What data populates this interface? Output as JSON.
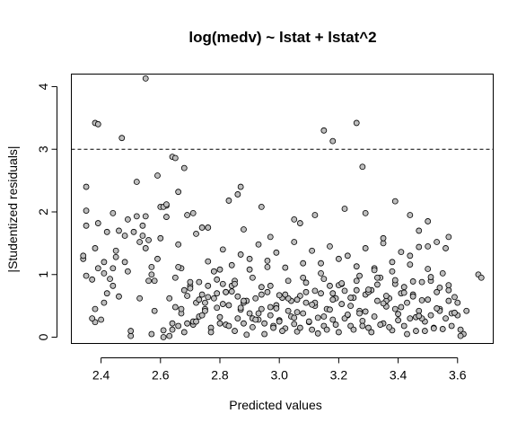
{
  "colors": {
    "point_fill": "#bebebe",
    "point_stroke": "#000000",
    "background": "#ffffff"
  },
  "chart_data": {
    "type": "scatter",
    "title": "log(medv) ~ lstat + lstat^2",
    "xlabel": "Predicted values",
    "ylabel": "|Studentized residuals|",
    "xlim": [
      2.3,
      3.72
    ],
    "ylim": [
      -0.1,
      4.2
    ],
    "xticks": [
      2.4,
      2.6,
      2.8,
      3.0,
      3.2,
      3.4,
      3.6
    ],
    "xtick_labels": [
      "2.4",
      "2.6",
      "2.8",
      "3.0",
      "3.2",
      "3.4",
      "3.6"
    ],
    "yticks": [
      0,
      1,
      2,
      3,
      4
    ],
    "ytick_labels": [
      "0",
      "1",
      "2",
      "3",
      "4"
    ],
    "reference_line": {
      "y": 3,
      "style": "dashed"
    },
    "grid": false,
    "x": [
      2.34,
      2.35,
      2.35,
      2.37,
      2.38,
      2.38,
      2.39,
      2.41,
      2.43,
      2.44,
      2.45,
      2.46,
      2.34,
      2.35,
      2.37,
      2.38,
      2.39,
      2.4,
      2.41,
      2.42,
      2.44,
      2.46,
      2.48,
      2.49,
      2.5,
      2.51,
      2.52,
      2.53,
      2.54,
      2.55,
      2.56,
      2.57,
      2.58,
      2.59,
      2.6,
      2.61,
      2.62,
      2.63,
      2.64,
      2.65,
      2.66,
      2.67,
      2.68,
      2.69,
      2.7,
      2.71,
      2.72,
      2.73,
      2.74,
      2.75,
      2.76,
      2.77,
      2.78,
      2.79,
      2.8,
      2.81,
      2.82,
      2.83,
      2.84,
      2.85,
      2.86,
      2.87,
      2.88,
      2.89,
      2.9,
      2.91,
      2.92,
      2.93,
      2.94,
      2.95,
      2.96,
      2.97,
      2.98,
      2.99,
      3.0,
      3.01,
      3.02,
      3.03,
      3.04,
      3.05,
      3.06,
      3.07,
      3.08,
      3.09,
      3.1,
      3.11,
      3.12,
      3.13,
      3.14,
      3.15,
      3.16,
      3.17,
      3.18,
      3.19,
      3.2,
      3.21,
      3.22,
      3.23,
      3.24,
      3.25,
      3.26,
      3.27,
      3.28,
      3.29,
      3.3,
      3.31,
      3.32,
      3.33,
      3.34,
      3.35,
      3.36,
      3.37,
      3.38,
      3.39,
      3.4,
      3.41,
      3.42,
      3.43,
      3.44,
      3.45,
      3.46,
      3.47,
      3.48,
      3.49,
      3.5,
      3.51,
      3.52,
      3.53,
      3.54,
      3.55,
      3.56,
      3.57,
      3.58,
      3.59,
      3.6,
      3.61,
      3.62,
      3.63,
      3.67,
      3.68,
      2.42,
      2.44,
      2.48,
      2.52,
      2.56,
      2.58,
      2.62,
      2.65,
      2.67,
      2.7,
      2.73,
      2.76,
      2.79,
      2.82,
      2.85,
      2.88,
      2.91,
      2.94,
      2.97,
      3.0,
      3.03,
      3.06,
      3.09,
      3.12,
      3.15,
      3.18,
      3.21,
      3.24,
      3.27,
      3.3,
      3.33,
      3.36,
      3.39,
      3.42,
      3.45,
      3.48,
      3.51,
      3.54,
      3.57,
      3.6,
      2.55,
      2.6,
      2.66,
      2.72,
      2.78,
      2.84,
      2.9,
      2.96,
      3.02,
      3.08,
      3.14,
      3.2,
      3.26,
      3.32,
      3.38,
      3.44,
      3.5,
      3.56,
      2.5,
      2.57,
      2.64,
      2.71,
      2.77,
      2.83,
      2.89,
      2.95,
      3.01,
      3.07,
      3.13,
      3.19,
      3.25,
      3.31,
      3.37,
      3.43,
      3.49,
      3.55,
      3.61,
      2.68,
      2.74,
      2.8,
      2.86,
      2.92,
      2.98,
      3.04,
      3.1,
      3.16,
      3.22,
      3.28,
      3.34,
      3.4,
      3.46,
      3.52,
      3.58,
      2.61,
      2.69,
      2.75,
      2.81,
      2.87,
      2.93,
      2.99,
      3.05,
      3.11,
      3.17,
      3.23,
      3.29,
      3.35,
      3.41,
      3.47,
      3.53,
      3.59,
      2.63,
      2.7,
      2.76,
      2.82,
      2.88,
      2.94,
      3.0,
      3.06,
      3.12,
      3.18,
      3.24,
      3.3,
      3.36,
      3.42,
      3.48,
      3.54,
      2.67,
      2.73,
      2.79,
      2.85,
      2.91,
      2.97,
      3.03,
      3.09,
      3.15,
      3.21,
      3.27,
      3.33,
      3.39,
      3.45,
      3.51,
      3.57,
      2.72,
      2.78,
      2.84,
      2.9,
      2.96,
      3.02,
      3.08,
      3.14,
      3.2,
      3.26,
      3.32,
      3.38,
      3.44,
      3.5,
      2.66,
      2.75,
      2.81,
      2.87,
      2.93,
      2.99,
      3.05,
      3.11,
      3.17,
      3.23,
      3.29,
      3.35,
      3.41,
      3.47,
      2.38,
      2.39,
      2.55,
      2.64,
      2.65,
      2.68,
      2.87,
      3.15,
      3.18,
      3.26,
      3.28,
      2.47,
      2.49,
      2.54,
      2.57,
      2.61,
      2.66,
      2.71,
      2.74,
      2.83,
      2.86,
      2.88,
      2.94,
      3.07,
      3.12,
      3.29,
      3.39,
      3.44,
      3.5,
      2.35,
      2.41,
      2.45,
      2.53,
      2.59,
      2.62,
      2.69,
      2.76,
      2.8,
      2.97,
      3.05,
      3.22,
      3.35,
      3.47,
      3.53,
      3.57
    ],
    "y": [
      1.25,
      1.78,
      0.98,
      0.92,
      1.42,
      0.24,
      1.82,
      1.2,
      0.93,
      1.1,
      1.38,
      1.7,
      1.3,
      2.4,
      0.3,
      0.45,
      1.1,
      0.28,
      0.55,
      0.7,
      0.82,
      0.65,
      1.2,
      1.05,
      0.02,
      1.68,
      1.93,
      0.62,
      1.78,
      1.42,
      0.9,
      1.12,
      0.42,
      1.25,
      1.58,
      0.0,
      1.92,
      0.62,
      0.22,
      0.48,
      0.18,
      1.1,
      0.75,
      0.66,
      0.82,
      0.2,
      0.55,
      0.33,
      0.68,
      0.45,
      1.21,
      0.15,
      0.62,
      0.7,
      0.32,
      0.85,
      0.2,
      0.51,
      0.73,
      0.1,
      0.65,
      0.44,
      0.22,
      0.58,
      0.38,
      0.16,
      0.62,
      0.28,
      0.45,
      0.05,
      0.72,
      0.35,
      0.18,
      0.51,
      0.27,
      0.63,
      0.14,
      0.42,
      0.58,
      0.21,
      0.09,
      0.66,
      0.38,
      0.55,
      0.24,
      0.12,
      0.5,
      0.31,
      0.7,
      0.18,
      0.45,
      0.82,
      0.28,
      0.62,
      0.08,
      0.53,
      0.74,
      0.35,
      0.18,
      0.63,
      0.9,
      0.42,
      0.26,
      0.68,
      0.15,
      0.75,
      0.33,
      0.58,
      0.95,
      0.22,
      0.49,
      0.62,
      0.11,
      0.85,
      0.37,
      0.7,
      0.18,
      0.55,
      0.3,
      0.68,
      0.1,
      0.42,
      0.88,
      0.25,
      0.6,
      0.35,
      0.15,
      0.72,
      0.45,
      1.02,
      0.3,
      0.58,
      0.18,
      0.64,
      0.35,
      0.12,
      0.05,
      0.42,
      1.0,
      0.95,
      1.68,
      1.98,
      1.62,
      2.48,
      1.55,
      0.9,
      2.1,
      0.95,
      0.38,
      0.88,
      0.6,
      0.82,
      0.47,
      0.72,
      0.9,
      0.55,
      0.3,
      0.68,
      0.48,
      0.25,
      0.62,
      0.4,
      0.72,
      0.55,
      0.33,
      0.6,
      0.85,
      0.5,
      0.38,
      0.72,
      0.95,
      0.58,
      0.45,
      0.8,
      0.65,
      0.3,
      0.9,
      0.42,
      0.75,
      0.55,
      1.93,
      2.08,
      2.32,
      1.65,
      1.05,
      0.82,
      1.25,
      1.12,
      0.68,
      0.95,
      1.18,
      0.83,
      0.75,
      1.1,
      1.05,
      1.3,
      1.45,
      1.42,
      0.1,
      0.05,
      0.12,
      0.25,
      0.08,
      0.18,
      0.04,
      0.22,
      0.1,
      0.15,
      0.06,
      0.2,
      0.12,
      0.08,
      0.16,
      0.05,
      0.1,
      0.13,
      0.02,
      0.08,
      0.35,
      0.22,
      0.3,
      0.28,
      0.15,
      0.33,
      0.25,
      0.12,
      0.3,
      0.18,
      0.2,
      0.27,
      0.32,
      0.14,
      0.38,
      0.11,
      0.22,
      0.42,
      0.53,
      0.47,
      0.38,
      0.46,
      0.31,
      0.52,
      0.44,
      0.36,
      0.41,
      0.54,
      0.48,
      0.34,
      0.46,
      0.39,
      0.02,
      0.78,
      0.64,
      0.72,
      0.58,
      0.8,
      0.67,
      0.6,
      0.74,
      0.7,
      0.63,
      0.76,
      0.66,
      0.71,
      0.59,
      0.79,
      0.45,
      0.88,
      0.92,
      0.85,
      0.95,
      0.82,
      0.9,
      0.87,
      0.93,
      0.86,
      0.98,
      0.84,
      0.91,
      0.89,
      0.96,
      0.83,
      0.25,
      1.05,
      1.15,
      1.08,
      1.22,
      1.11,
      1.18,
      1.02,
      1.25,
      1.13,
      1.07,
      1.2,
      1.16,
      1.09,
      1.12,
      0.55,
      1.4,
      1.32,
      1.48,
      1.35,
      1.52,
      1.38,
      1.45,
      1.3,
      1.42,
      1.5,
      1.36,
      1.44,
      3.42,
      3.4,
      4.13,
      2.88,
      2.86,
      2.7,
      2.4,
      3.3,
      3.13,
      3.42,
      2.72,
      3.18,
      1.88,
      1.62,
      1.0,
      2.08,
      1.48,
      1.98,
      1.75,
      2.18,
      2.28,
      1.72,
      2.08,
      1.82,
      1.95,
      1.98,
      2.17,
      1.95,
      1.85,
      2.02,
      1.02,
      1.28,
      1.52,
      2.58,
      2.12,
      1.95,
      1.75,
      1.08,
      1.6,
      1.88,
      2.05,
      1.58,
      1.7,
      1.52,
      1.6
    ]
  }
}
